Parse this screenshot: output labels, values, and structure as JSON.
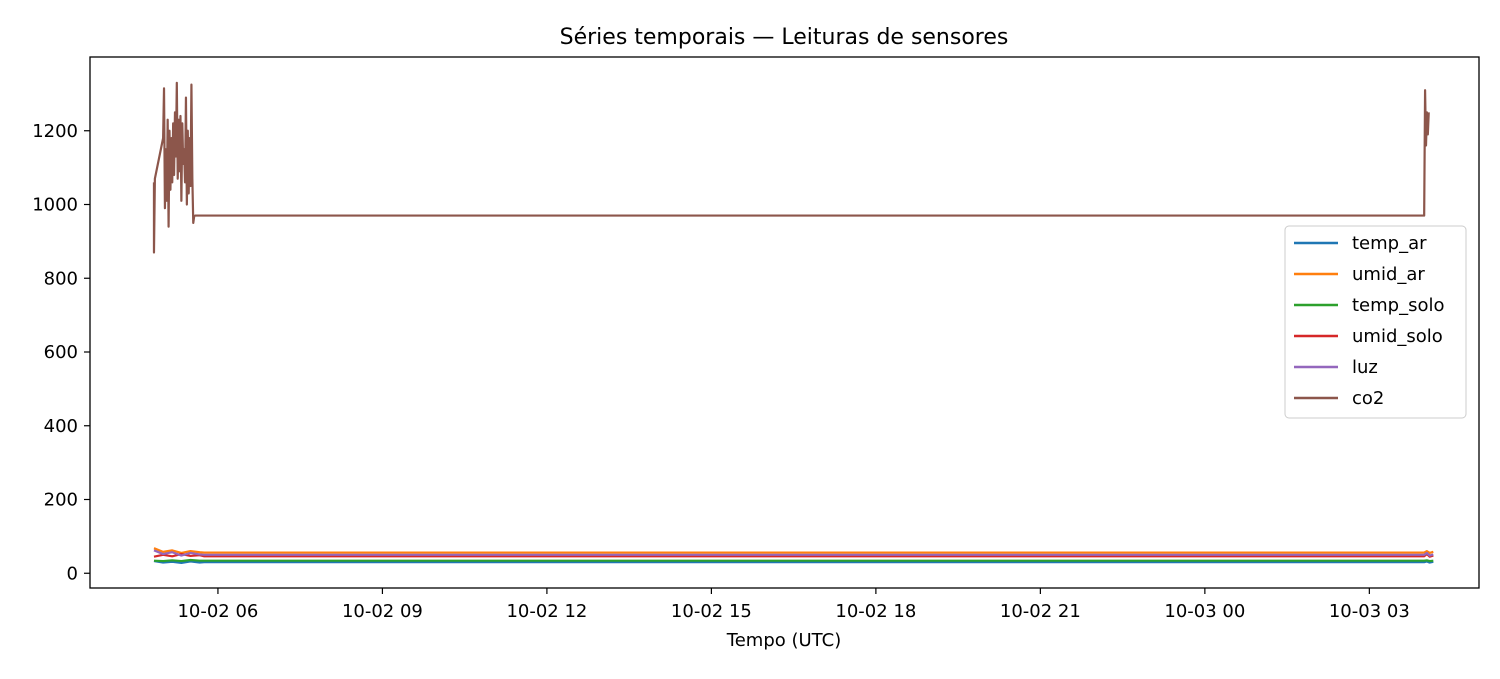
{
  "chart_data": {
    "type": "line",
    "title": "Séries temporais — Leituras de sensores",
    "xlabel": "Tempo (UTC)",
    "ylabel": "",
    "x_unit": "datetime (UTC)",
    "xlim": [
      "2025-10-02 03:40",
      "2025-10-03 05:00"
    ],
    "ylim": [
      -40,
      1400
    ],
    "xticks": [
      {
        "value": "2025-10-02 06:00",
        "label": "10-02 06"
      },
      {
        "value": "2025-10-02 09:00",
        "label": "10-02 09"
      },
      {
        "value": "2025-10-02 12:00",
        "label": "10-02 12"
      },
      {
        "value": "2025-10-02 15:00",
        "label": "10-02 15"
      },
      {
        "value": "2025-10-02 18:00",
        "label": "10-02 18"
      },
      {
        "value": "2025-10-02 21:00",
        "label": "10-02 21"
      },
      {
        "value": "2025-10-03 00:00",
        "label": "10-03 00"
      },
      {
        "value": "2025-10-03 03:00",
        "label": "10-03 03"
      }
    ],
    "yticks": [
      0,
      200,
      400,
      600,
      800,
      1000,
      1200
    ],
    "grid": false,
    "legend_position": "center-right",
    "series": [
      {
        "name": "temp_ar",
        "color": "#1f77b4",
        "points": [
          [
            "2025-10-02 04:50",
            33
          ],
          [
            "2025-10-02 05:00",
            29
          ],
          [
            "2025-10-02 05:10",
            31
          ],
          [
            "2025-10-02 05:20",
            28
          ],
          [
            "2025-10-02 05:30",
            32
          ],
          [
            "2025-10-02 05:40",
            29
          ],
          [
            "2025-10-02 05:45",
            30
          ],
          [
            "2025-10-03 04:00",
            30
          ],
          [
            "2025-10-03 04:03",
            32
          ],
          [
            "2025-10-03 04:06",
            29
          ],
          [
            "2025-10-03 04:10",
            31
          ]
        ]
      },
      {
        "name": "umid_ar",
        "color": "#ff7f0e",
        "points": [
          [
            "2025-10-02 04:50",
            68
          ],
          [
            "2025-10-02 05:00",
            58
          ],
          [
            "2025-10-02 05:10",
            62
          ],
          [
            "2025-10-02 05:20",
            55
          ],
          [
            "2025-10-02 05:30",
            60
          ],
          [
            "2025-10-02 05:40",
            57
          ],
          [
            "2025-10-02 05:45",
            56
          ],
          [
            "2025-10-03 04:00",
            56
          ],
          [
            "2025-10-03 04:03",
            60
          ],
          [
            "2025-10-03 04:06",
            55
          ],
          [
            "2025-10-03 04:10",
            58
          ]
        ]
      },
      {
        "name": "temp_solo",
        "color": "#2ca02c",
        "points": [
          [
            "2025-10-02 04:50",
            34
          ],
          [
            "2025-10-02 05:00",
            33
          ],
          [
            "2025-10-02 05:10",
            35
          ],
          [
            "2025-10-02 05:20",
            33
          ],
          [
            "2025-10-02 05:30",
            36
          ],
          [
            "2025-10-02 05:40",
            34
          ],
          [
            "2025-10-02 05:45",
            34
          ],
          [
            "2025-10-03 04:00",
            34
          ],
          [
            "2025-10-03 04:03",
            35
          ],
          [
            "2025-10-03 04:06",
            33
          ],
          [
            "2025-10-03 04:10",
            34
          ]
        ]
      },
      {
        "name": "umid_solo",
        "color": "#d62728",
        "points": [
          [
            "2025-10-02 04:50",
            45
          ],
          [
            "2025-10-02 05:00",
            50
          ],
          [
            "2025-10-02 05:10",
            46
          ],
          [
            "2025-10-02 05:20",
            52
          ],
          [
            "2025-10-02 05:30",
            47
          ],
          [
            "2025-10-02 05:40",
            49
          ],
          [
            "2025-10-02 05:45",
            46
          ],
          [
            "2025-10-03 04:00",
            46
          ],
          [
            "2025-10-03 04:03",
            52
          ],
          [
            "2025-10-03 04:06",
            45
          ],
          [
            "2025-10-03 04:10",
            48
          ]
        ]
      },
      {
        "name": "luz",
        "color": "#9467bd",
        "points": [
          [
            "2025-10-02 04:50",
            62
          ],
          [
            "2025-10-02 05:00",
            52
          ],
          [
            "2025-10-02 05:10",
            57
          ],
          [
            "2025-10-02 05:20",
            48
          ],
          [
            "2025-10-02 05:30",
            55
          ],
          [
            "2025-10-02 05:40",
            51
          ],
          [
            "2025-10-02 05:45",
            50
          ],
          [
            "2025-10-03 04:00",
            50
          ],
          [
            "2025-10-03 04:03",
            55
          ],
          [
            "2025-10-03 04:06",
            48
          ],
          [
            "2025-10-03 04:10",
            51
          ]
        ]
      },
      {
        "name": "co2",
        "color": "#8c564b",
        "points": [
          [
            "2025-10-02 04:50",
            1060
          ],
          [
            "2025-10-02 04:50",
            870
          ],
          [
            "2025-10-02 04:51",
            1070
          ],
          [
            "2025-10-02 05:00",
            1180
          ],
          [
            "2025-10-02 05:01",
            1315
          ],
          [
            "2025-10-02 05:02",
            990
          ],
          [
            "2025-10-02 05:03",
            1150
          ],
          [
            "2025-10-02 05:04",
            1010
          ],
          [
            "2025-10-02 05:05",
            1230
          ],
          [
            "2025-10-02 05:06",
            940
          ],
          [
            "2025-10-02 05:07",
            1200
          ],
          [
            "2025-10-02 05:08",
            1040
          ],
          [
            "2025-10-02 05:09",
            1180
          ],
          [
            "2025-10-02 05:10",
            1060
          ],
          [
            "2025-10-02 05:11",
            1220
          ],
          [
            "2025-10-02 05:12",
            1080
          ],
          [
            "2025-10-02 05:13",
            1250
          ],
          [
            "2025-10-02 05:14",
            1130
          ],
          [
            "2025-10-02 05:15",
            1330
          ],
          [
            "2025-10-02 05:16",
            1070
          ],
          [
            "2025-10-02 05:17",
            1230
          ],
          [
            "2025-10-02 05:18",
            1090
          ],
          [
            "2025-10-02 05:19",
            1240
          ],
          [
            "2025-10-02 05:20",
            1010
          ],
          [
            "2025-10-02 05:21",
            1220
          ],
          [
            "2025-10-02 05:22",
            1110
          ],
          [
            "2025-10-02 05:23",
            1150
          ],
          [
            "2025-10-02 05:24",
            1060
          ],
          [
            "2025-10-02 05:25",
            1290
          ],
          [
            "2025-10-02 05:26",
            1000
          ],
          [
            "2025-10-02 05:27",
            1200
          ],
          [
            "2025-10-02 05:28",
            1030
          ],
          [
            "2025-10-02 05:29",
            1180
          ],
          [
            "2025-10-02 05:30",
            1050
          ],
          [
            "2025-10-02 05:31",
            1325
          ],
          [
            "2025-10-02 05:32",
            1070
          ],
          [
            "2025-10-02 05:33",
            950
          ],
          [
            "2025-10-02 05:34",
            968
          ],
          [
            "2025-10-02 05:35",
            970
          ],
          [
            "2025-10-03 04:00",
            970
          ],
          [
            "2025-10-03 04:01",
            1310
          ],
          [
            "2025-10-03 04:02",
            1160
          ],
          [
            "2025-10-03 04:03",
            1250
          ],
          [
            "2025-10-03 04:04",
            1190
          ],
          [
            "2025-10-03 04:05",
            1250
          ]
        ]
      }
    ]
  }
}
